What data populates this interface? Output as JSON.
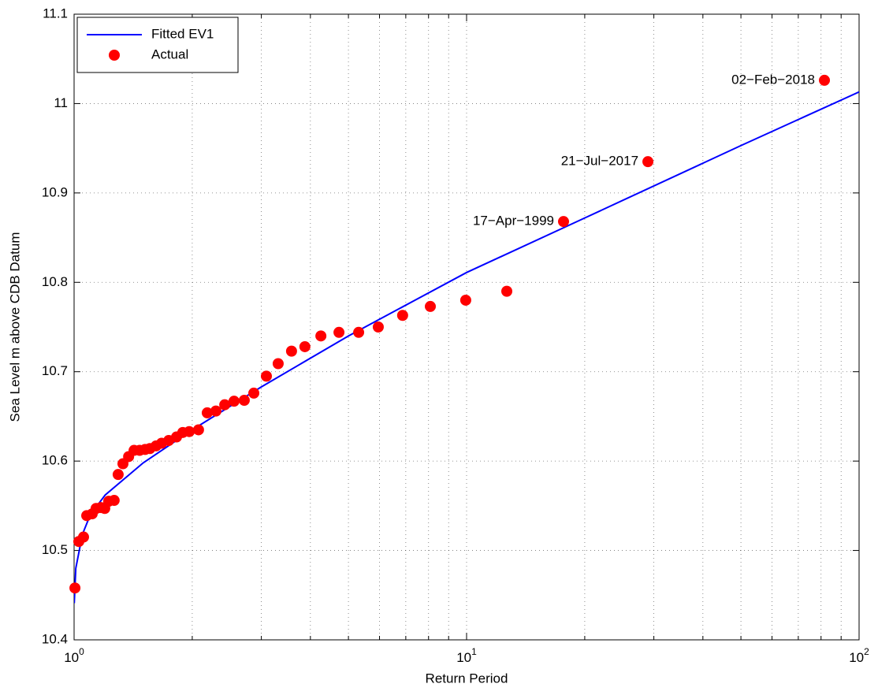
{
  "chart_data": {
    "type": "line",
    "xlabel": "Return Period",
    "ylabel": "Sea Level m above CDB Datum",
    "xscale": "log",
    "grid": true,
    "legend_position": "northwest",
    "xlim": [
      1,
      100
    ],
    "ylim": [
      10.4,
      11.1
    ],
    "xticks": [
      {
        "value": 1,
        "label": "10",
        "exponent": "0"
      },
      {
        "value": 10,
        "label": "10",
        "exponent": "1"
      },
      {
        "value": 100,
        "label": "10",
        "exponent": "2"
      }
    ],
    "xminorticks": [
      2,
      3,
      4,
      5,
      6,
      7,
      8,
      9,
      20,
      30,
      40,
      50,
      60,
      70,
      80,
      90
    ],
    "yticks": [
      10.4,
      10.5,
      10.6,
      10.7,
      10.8,
      10.9,
      11,
      11.1
    ],
    "series": [
      {
        "name": "Fitted EV1",
        "type": "line",
        "color": "#0000ff",
        "x": [
          1.001,
          1.01,
          1.05,
          1.1,
          1.2,
          1.5,
          2,
          3,
          5,
          10,
          20,
          50,
          100
        ],
        "values": [
          10.441,
          10.48,
          10.518,
          10.54,
          10.562,
          10.598,
          10.635,
          10.683,
          10.74,
          10.811,
          10.872,
          10.953,
          11.013
        ]
      },
      {
        "name": "Actual",
        "type": "scatter",
        "color": "#ff0000",
        "x": [
          1.005,
          1.028,
          1.057,
          1.077,
          1.112,
          1.138,
          1.17,
          1.197,
          1.225,
          1.265,
          1.295,
          1.332,
          1.377,
          1.422,
          1.469,
          1.517,
          1.56,
          1.618,
          1.671,
          1.742,
          1.824,
          1.892,
          1.965,
          2.075,
          2.184,
          2.298,
          2.42,
          2.556,
          2.714,
          2.87,
          3.09,
          3.311,
          3.581,
          3.873,
          4.254,
          4.73,
          5.309,
          5.957,
          6.871,
          8.084,
          9.95,
          12.66,
          17.66,
          28.97,
          81.6
        ],
        "values": [
          10.458,
          10.51,
          10.515,
          10.539,
          10.541,
          10.547,
          10.548,
          10.547,
          10.555,
          10.556,
          10.585,
          10.597,
          10.605,
          10.612,
          10.612,
          10.613,
          10.614,
          10.617,
          10.62,
          10.623,
          10.627,
          10.632,
          10.633,
          10.635,
          10.654,
          10.656,
          10.663,
          10.667,
          10.668,
          10.676,
          10.695,
          10.709,
          10.723,
          10.728,
          10.74,
          10.744,
          10.744,
          10.75,
          10.763,
          10.773,
          10.78,
          10.79,
          10.868,
          10.935,
          11.026
        ]
      }
    ],
    "annotations": [
      {
        "text": "17−Apr−1999",
        "x": 17.66,
        "y": 10.868
      },
      {
        "text": "21−Jul−2017",
        "x": 28.97,
        "y": 10.935
      },
      {
        "text": "02−Feb−2018",
        "x": 81.6,
        "y": 11.026
      }
    ]
  }
}
